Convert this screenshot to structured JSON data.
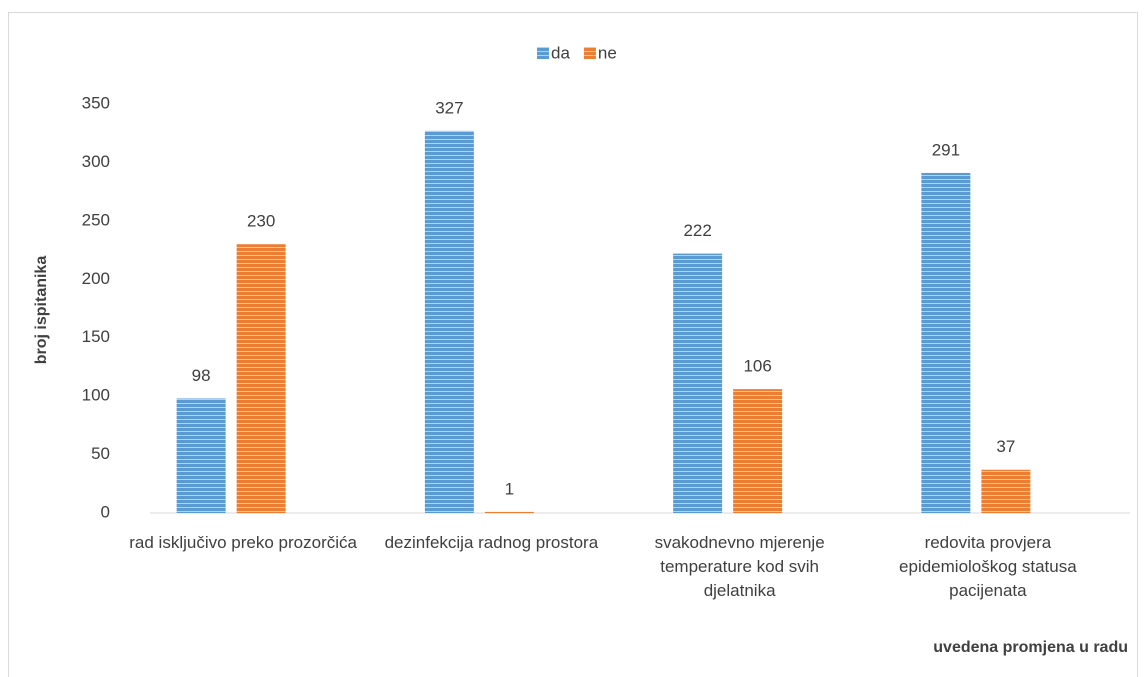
{
  "chart_data": {
    "type": "bar",
    "categories": [
      "rad isključivo preko prozorčića",
      "dezinfekcija radnog prostora",
      "svakodnevno mjerenje temperature kod svih djelatnika",
      "redovita provjera epidemiološkog statusa pacijenata"
    ],
    "series": [
      {
        "name": "da",
        "color": "#5b9bd5",
        "values": [
          98,
          327,
          222,
          291
        ]
      },
      {
        "name": "ne",
        "color": "#ed7d31",
        "values": [
          230,
          1,
          106,
          37
        ]
      }
    ],
    "ylabel": "broj ispitanika",
    "xlabel": "uvedena promjena u radu",
    "ylim": [
      0,
      350
    ],
    "yticks": [
      0,
      50,
      100,
      150,
      200,
      250,
      300,
      350
    ],
    "grid": false,
    "legend": "top"
  }
}
